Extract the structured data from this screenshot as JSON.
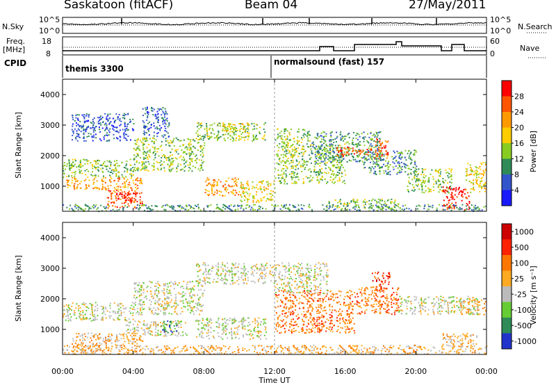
{
  "header": {
    "station": "Saskatoon (fitACF)",
    "beam": "Beam 04",
    "date": "27/May/2011"
  },
  "top_panels": {
    "nsky_label": "N.Sky",
    "nsky_ticks": [
      "10^5",
      "10^0"
    ],
    "nsearch_label": "N.Search",
    "freq_label_line1": "Freq.",
    "freq_label_line2": "[MHz]",
    "freq_ticks": [
      "18",
      "8"
    ],
    "nave_ticks": [
      "60",
      "0"
    ],
    "nave_label": "Nave",
    "cpid_label": "CPID",
    "cpid_segments": [
      "themis 3300",
      "normalsound (fast) 157"
    ]
  },
  "colors": {
    "power": [
      "#1a1aff",
      "#3355cc",
      "#2e8b57",
      "#88cc22",
      "#ffcc00",
      "#ff9900",
      "#ff5500",
      "#ff0000"
    ],
    "velocity": [
      "#2233cc",
      "#2e8b57",
      "#66cc33",
      "#bbbbbb",
      "#ffaa22",
      "#ff7700",
      "#ff2200",
      "#cc0000"
    ],
    "ground_scatter": "#c8c8c8"
  },
  "chart_data": [
    {
      "type": "heatmap",
      "panel": "power",
      "ylabel": "Slant Range [km]",
      "ylim": [
        180,
        4500
      ],
      "yticks": [
        "1000",
        "2000",
        "3000",
        "4000"
      ],
      "xlim_hours": [
        0,
        24
      ],
      "colorbar_label": "Power [dB]",
      "colorbar_ticks": [
        "4",
        "8",
        "12",
        "16",
        "20",
        "24",
        "28"
      ],
      "bands": [
        {
          "t0": 0.0,
          "t1": 4.0,
          "r0": 1300,
          "r1": 1900,
          "level": 3
        },
        {
          "t0": 0.2,
          "t1": 4.5,
          "r0": 900,
          "r1": 1300,
          "level": 5
        },
        {
          "t0": 2.5,
          "t1": 4.5,
          "r0": 300,
          "r1": 900,
          "level": 6
        },
        {
          "t0": 3.0,
          "t1": 4.2,
          "r0": 500,
          "r1": 800,
          "level": 7
        },
        {
          "t0": 4.0,
          "t1": 8.0,
          "r0": 1500,
          "r1": 2600,
          "level": 3
        },
        {
          "t0": 7.5,
          "t1": 11.5,
          "r0": 2500,
          "r1": 3100,
          "level": 3
        },
        {
          "t0": 9.0,
          "t1": 10.5,
          "r0": 2800,
          "r1": 3100,
          "level": 4
        },
        {
          "t0": 4.5,
          "t1": 6.0,
          "r0": 2600,
          "r1": 3600,
          "level": 1
        },
        {
          "t0": 0.5,
          "t1": 4.0,
          "r0": 2500,
          "r1": 3400,
          "level": 1
        },
        {
          "t0": 8.0,
          "t1": 10.0,
          "r0": 700,
          "r1": 1300,
          "level": 5
        },
        {
          "t0": 10.0,
          "t1": 12.0,
          "r0": 500,
          "r1": 1200,
          "level": 4
        },
        {
          "t0": 12.0,
          "t1": 16.0,
          "r0": 1100,
          "r1": 2400,
          "level": 3
        },
        {
          "t0": 12.0,
          "t1": 14.0,
          "r0": 2400,
          "r1": 2900,
          "level": 3
        },
        {
          "t0": 14.0,
          "t1": 18.0,
          "r0": 1800,
          "r1": 2800,
          "level": 2
        },
        {
          "t0": 15.5,
          "t1": 17.5,
          "r0": 2000,
          "r1": 2300,
          "level": 6
        },
        {
          "t0": 17.0,
          "t1": 20.0,
          "r0": 1400,
          "r1": 2200,
          "level": 2
        },
        {
          "t0": 17.6,
          "t1": 18.4,
          "r0": 1900,
          "r1": 2600,
          "level": 6
        },
        {
          "t0": 19.5,
          "t1": 22.0,
          "r0": 800,
          "r1": 1600,
          "level": 3
        },
        {
          "t0": 21.5,
          "t1": 23.0,
          "r0": 250,
          "r1": 1000,
          "level": 7
        },
        {
          "t0": 22.8,
          "t1": 24.0,
          "r0": 800,
          "r1": 1800,
          "level": 4
        },
        {
          "t0": 15.0,
          "t1": 19.0,
          "r0": 300,
          "r1": 600,
          "level": 3
        },
        {
          "t0": 0.0,
          "t1": 24.0,
          "r0": 200,
          "r1": 420,
          "level": 2
        }
      ]
    },
    {
      "type": "heatmap",
      "panel": "velocity",
      "ylabel": "Slant Range [km]",
      "ylim": [
        180,
        4500
      ],
      "yticks": [
        "1000",
        "2000",
        "3000",
        "4000"
      ],
      "xlabel": "Time UT",
      "xticks": [
        "00:00",
        "04:00",
        "08:00",
        "12:00",
        "16:00",
        "20:00",
        "00:00"
      ],
      "xlim_hours": [
        0,
        24
      ],
      "colorbar_label": "Velocity [m s⁻¹]",
      "colorbar_ticks": [
        "1000",
        "500",
        "100",
        "25",
        "-25",
        "-100",
        "-500",
        "-1000"
      ],
      "bands": [
        {
          "t0": 0.0,
          "t1": 4.0,
          "r0": 1300,
          "r1": 1900,
          "level": 3
        },
        {
          "t0": 4.0,
          "t1": 8.0,
          "r0": 1500,
          "r1": 2600,
          "level": 3
        },
        {
          "t0": 7.5,
          "t1": 12.0,
          "r0": 2500,
          "r1": 3200,
          "level": 3
        },
        {
          "t0": 0.5,
          "t1": 4.5,
          "r0": 300,
          "r1": 900,
          "level": 4
        },
        {
          "t0": 3.5,
          "t1": 7.0,
          "r0": 800,
          "r1": 1300,
          "level": 3
        },
        {
          "t0": 7.5,
          "t1": 11.5,
          "r0": 700,
          "r1": 1400,
          "level": 3
        },
        {
          "t0": 5.5,
          "t1": 6.5,
          "r0": 900,
          "r1": 1300,
          "level": 1
        },
        {
          "t0": 12.0,
          "t1": 16.5,
          "r0": 900,
          "r1": 2300,
          "level": 5
        },
        {
          "t0": 16.5,
          "t1": 19.0,
          "r0": 1500,
          "r1": 2400,
          "level": 5
        },
        {
          "t0": 17.5,
          "t1": 18.5,
          "r0": 2300,
          "r1": 2900,
          "level": 6
        },
        {
          "t0": 12.0,
          "t1": 15.0,
          "r0": 2200,
          "r1": 3200,
          "level": 3
        },
        {
          "t0": 19.0,
          "t1": 23.5,
          "r0": 1500,
          "r1": 2100,
          "level": 3
        },
        {
          "t0": 21.5,
          "t1": 23.5,
          "r0": 400,
          "r1": 900,
          "level": 4
        },
        {
          "t0": 22.5,
          "t1": 24.0,
          "r0": 1500,
          "r1": 2000,
          "level": 4
        },
        {
          "t0": 0.0,
          "t1": 24.0,
          "r0": 200,
          "r1": 500,
          "level": 4
        }
      ]
    }
  ]
}
